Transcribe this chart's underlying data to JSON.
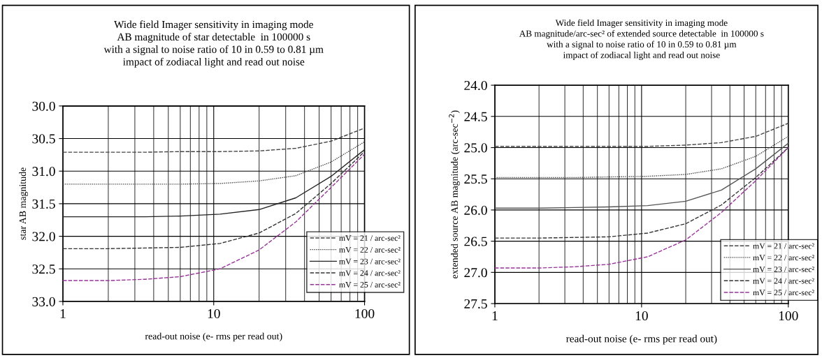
{
  "chart_data": [
    {
      "type": "line",
      "title": "Wide field Imager sensitivity in imaging mode\nAB magnitude of star detectable  in 100000 s\nwith a signal to noise ratio of 10 in 0.59 to 0.81 µm\nimpact of zodiacal light and read out noise",
      "xlabel": "read-out noise (e- rms per read out)",
      "ylabel": "star AB magnitude",
      "log": "x",
      "grid": true,
      "legend": "bottom right",
      "marker": "none",
      "x": [
        1,
        2,
        3.5,
        6,
        11,
        20,
        35,
        60,
        100
      ],
      "xlim": [
        1,
        100
      ],
      "xticks": [
        1,
        10,
        100
      ],
      "ylim": [
        33.0,
        30.0
      ],
      "yticks": [
        {
          "value": 30.0,
          "label": "30.0"
        },
        {
          "value": 30.5,
          "label": "30.5"
        },
        {
          "value": 31.0,
          "label": "31.0"
        },
        {
          "value": 31.5,
          "label": "31.5"
        },
        {
          "value": 32.0,
          "label": "32.0"
        },
        {
          "value": 32.5,
          "label": "32.5"
        },
        {
          "value": 33.0,
          "label": "33.0"
        }
      ],
      "series": [
        {
          "name": "mV = 21 / arc-sec²",
          "color": "#444444",
          "line_style": "dashed",
          "values": [
            30.71,
            30.71,
            30.71,
            30.7,
            30.7,
            30.69,
            30.65,
            30.54,
            30.34
          ]
        },
        {
          "name": "mV = 22 / arc-sec²",
          "color": "#444444",
          "line_style": "dotted",
          "values": [
            31.2,
            31.2,
            31.2,
            31.2,
            31.19,
            31.15,
            31.07,
            30.86,
            30.55
          ]
        },
        {
          "name": "mV = 23 / arc-sec²",
          "color": "#222222",
          "line_style": "solid",
          "values": [
            31.7,
            31.7,
            31.7,
            31.69,
            31.66,
            31.59,
            31.41,
            31.08,
            30.67
          ]
        },
        {
          "name": "mV = 24 / arc-sec²",
          "color": "#333333",
          "line_style": "dashed",
          "values": [
            32.19,
            32.19,
            32.18,
            32.17,
            32.11,
            31.95,
            31.65,
            31.19,
            30.7
          ]
        },
        {
          "name": "mV = 25 / arc-sec²",
          "color": "#993399",
          "line_style": "dashed",
          "values": [
            32.68,
            32.68,
            32.66,
            32.62,
            32.5,
            32.21,
            31.78,
            31.25,
            30.74
          ]
        }
      ]
    },
    {
      "type": "line",
      "title": "Wide field Imager sensitivity in imaging mode\nAB magnitude/arc-sec² of extended source detectable  in 100000 s\nwith a signal to noise ratio of 10 in 0.59 to 0.81 µm\nimpact of zodiacal light and read out noise",
      "xlabel": "read-out noise (e- rms per read out)",
      "ylabel": "extended source AB magnitude (arc-sec$^{−2}$)",
      "log": "x",
      "grid": true,
      "legend": "bottom right",
      "marker": "none",
      "x": [
        1,
        2,
        3.5,
        6,
        11,
        20,
        35,
        60,
        100
      ],
      "xlim": [
        1,
        100
      ],
      "xticks": [
        1,
        10,
        100
      ],
      "ylim": [
        27.5,
        24.0
      ],
      "yticks": [
        {
          "value": 24.0,
          "label": "24.0"
        },
        {
          "value": 24.5,
          "label": "24.5"
        },
        {
          "value": 25.0,
          "label": "25.0"
        },
        {
          "value": 25.5,
          "label": "25.5"
        },
        {
          "value": 26.0,
          "label": "26.0"
        },
        {
          "value": 26.5,
          "label": "26.5"
        },
        {
          "value": 27.0,
          "label": "27.0"
        },
        {
          "value": 27.5,
          "label": "27.5"
        }
      ],
      "series": [
        {
          "name": "mV = 21 / arc-sec²",
          "color": "#444444",
          "line_style": "dashed",
          "values": [
            24.98,
            24.98,
            24.98,
            24.98,
            24.98,
            24.96,
            24.92,
            24.82,
            24.61
          ]
        },
        {
          "name": "mV = 22 / arc-sec²",
          "color": "#444444",
          "line_style": "dotted",
          "values": [
            25.48,
            25.48,
            25.48,
            25.47,
            25.46,
            25.43,
            25.34,
            25.14,
            24.82
          ]
        },
        {
          "name": "mV = 23 / arc-sec²",
          "color": "#555555",
          "line_style": "solid",
          "values": [
            25.97,
            25.97,
            25.96,
            25.95,
            25.93,
            25.86,
            25.68,
            25.34,
            24.93
          ]
        },
        {
          "name": "mV = 24 / arc-sec²",
          "color": "#333333",
          "line_style": "dashed",
          "values": [
            26.45,
            26.45,
            26.44,
            26.43,
            26.37,
            26.22,
            25.92,
            25.48,
            25.0
          ]
        },
        {
          "name": "mV = 25 / arc-sec²",
          "color": "#993399",
          "line_style": "dashed",
          "values": [
            26.93,
            26.93,
            26.91,
            26.87,
            26.75,
            26.48,
            26.04,
            25.53,
            25.0
          ]
        }
      ]
    }
  ]
}
